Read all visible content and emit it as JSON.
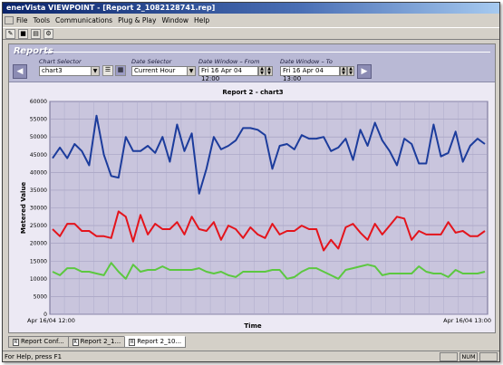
{
  "window": {
    "title": "enerVista VIEWPOINT - [Report 2_1082128741.rep]"
  },
  "menu": [
    "File",
    "Tools",
    "Communications",
    "Plug & Play",
    "Window",
    "Help"
  ],
  "toolbar_icons": [
    "open-icon",
    "save-icon",
    "print-icon",
    "report-icon"
  ],
  "panel": {
    "title": "Reports",
    "chart_selector_label": "Chart Selector",
    "chart_selector_value": "chart3",
    "date_selector_label": "Date Selector",
    "date_selector_value": "Current Hour",
    "from_label": "Date Window – From",
    "from_value": "Fri  16 Apr 04  12:00",
    "to_label": "Date Window – To",
    "to_value": "Fri  16 Apr 04  13:00"
  },
  "tabs": [
    "Report Conf...",
    "Report 2_1...",
    "Report 2_10..."
  ],
  "status": {
    "message": "For Help, press F1",
    "num": "NUM"
  },
  "chart_data": {
    "type": "line",
    "title": "Report 2 - chart3",
    "xlabel": "Time",
    "ylabel": "Metered Value",
    "ylim": [
      0,
      60000
    ],
    "yticks": [
      0,
      5000,
      10000,
      15000,
      20000,
      25000,
      30000,
      35000,
      40000,
      45000,
      50000,
      55000,
      60000
    ],
    "x_start_label": "Apr 16/04  12:00",
    "x_end_label": "Apr 16/04  13:00",
    "grid": true,
    "series": [
      {
        "color": "#1c3c9c",
        "values": [
          44000,
          47000,
          44000,
          48000,
          46000,
          42000,
          56000,
          45000,
          39000,
          38500,
          50000,
          46000,
          46000,
          47500,
          45500,
          50000,
          43000,
          53500,
          46000,
          51000,
          34000,
          41000,
          50000,
          46500,
          47500,
          49000,
          52500,
          52500,
          52000,
          50500,
          41000,
          47500,
          48000,
          46500,
          50500,
          49500,
          49500,
          50000,
          46000,
          47000,
          49500,
          43500,
          52000,
          47500,
          54000,
          49000,
          46000,
          42000,
          49500,
          48000,
          42500,
          42500,
          53500,
          44500,
          45500,
          51500,
          43000,
          47500,
          49500,
          48000
        ]
      },
      {
        "color": "#e4141c",
        "values": [
          24000,
          22000,
          25500,
          25500,
          23500,
          23500,
          22000,
          22000,
          21500,
          29000,
          27500,
          20500,
          28000,
          22500,
          25500,
          24000,
          24000,
          26000,
          22500,
          27500,
          24000,
          23500,
          26000,
          21000,
          25000,
          24000,
          21500,
          24500,
          22500,
          21500,
          25500,
          22500,
          23500,
          23500,
          25000,
          24000,
          24000,
          18000,
          21000,
          18500,
          24500,
          25500,
          23000,
          21000,
          25500,
          22500,
          25000,
          27500,
          27000,
          21000,
          23500,
          22500,
          22500,
          22500,
          26000,
          23000,
          23500,
          22000,
          22000,
          23500
        ]
      },
      {
        "color": "#5cc840",
        "values": [
          12000,
          11000,
          13000,
          13000,
          12000,
          12000,
          11500,
          11000,
          14500,
          12000,
          10000,
          14000,
          12000,
          12500,
          12500,
          13500,
          12500,
          12500,
          12500,
          12500,
          13000,
          12000,
          11500,
          12000,
          11000,
          10500,
          12000,
          12000,
          12000,
          12000,
          12500,
          12500,
          10000,
          10500,
          12000,
          13000,
          13000,
          12000,
          11000,
          10000,
          12500,
          13000,
          13500,
          14000,
          13500,
          11000,
          11500,
          11500,
          11500,
          11500,
          13500,
          12000,
          11500,
          11500,
          10500,
          12500,
          11500,
          11500,
          11500,
          12000
        ]
      }
    ]
  }
}
